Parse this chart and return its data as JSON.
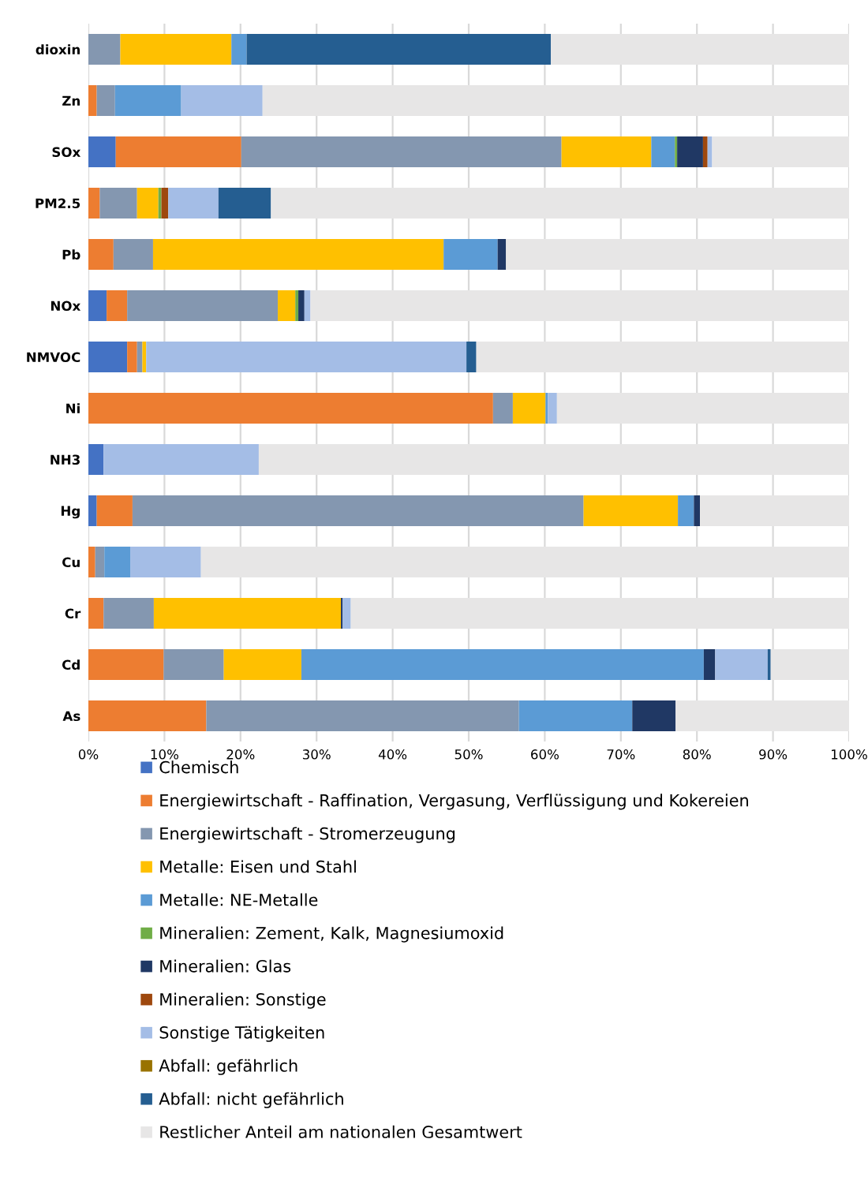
{
  "chart_data": {
    "type": "bar",
    "orientation": "horizontal",
    "stacked": true,
    "legend": "bottom",
    "grid": "x",
    "categories": [
      "dioxin",
      "Zn",
      "SOx",
      "PM2.5",
      "Pb",
      "NOx",
      "NMVOC",
      "Ni",
      "NH3",
      "Hg",
      "Cu",
      "Cr",
      "Cd",
      "As"
    ],
    "xlim": [
      0,
      100
    ],
    "xticks": [
      {
        "value": 0,
        "label": "0%"
      },
      {
        "value": 10,
        "label": "10%"
      },
      {
        "value": 20,
        "label": "20%"
      },
      {
        "value": 30,
        "label": "30%"
      },
      {
        "value": 40,
        "label": "40%"
      },
      {
        "value": 50,
        "label": "50%"
      },
      {
        "value": 60,
        "label": "60%"
      },
      {
        "value": 70,
        "label": "70%"
      },
      {
        "value": 80,
        "label": "80%"
      },
      {
        "value": 90,
        "label": "90%"
      },
      {
        "value": 100,
        "label": "100%"
      }
    ],
    "series": [
      {
        "name": "Chemisch",
        "color": "#4472c4",
        "values": [
          0,
          0,
          3.6,
          0,
          0,
          2.4,
          5.1,
          0,
          2.0,
          1.1,
          0,
          0,
          0,
          0
        ]
      },
      {
        "name": "Energiewirtschaft - Raffination, Vergasung, Verflüssigung und Kokereien",
        "color": "#ed7d31",
        "values": [
          0,
          1.1,
          16.5,
          1.5,
          3.3,
          2.7,
          1.3,
          53.2,
          0,
          4.7,
          0.9,
          2.0,
          9.9,
          15.5
        ]
      },
      {
        "name": "Energiewirtschaft - Stromerzeugung",
        "color": "#8497b0",
        "values": [
          4.2,
          2.4,
          42.1,
          4.9,
          5.2,
          19.8,
          0.7,
          2.6,
          0,
          59.3,
          1.2,
          6.6,
          7.9,
          41.1
        ]
      },
      {
        "name": "Metalle: Eisen und Stahl",
        "color": "#ffc000",
        "values": [
          14.6,
          0,
          11.8,
          2.8,
          38.2,
          2.3,
          0.5,
          4.3,
          0,
          12.4,
          0,
          24.6,
          10.2,
          0
        ]
      },
      {
        "name": "Metalle: NE-Metalle",
        "color": "#5b9bd5",
        "values": [
          2.0,
          8.7,
          3.1,
          0,
          7.1,
          0,
          0,
          0.3,
          0,
          2.1,
          3.4,
          0,
          52.9,
          14.9
        ]
      },
      {
        "name": "Mineralien: Zement, Kalk, Magnesiumoxid",
        "color": "#70ad47",
        "values": [
          0,
          0,
          0.3,
          0.4,
          0,
          0.4,
          0,
          0,
          0,
          0,
          0,
          0,
          0,
          0
        ]
      },
      {
        "name": "Mineralien: Glas",
        "color": "#203864",
        "values": [
          0,
          0,
          3.4,
          0,
          1.1,
          0.8,
          0,
          0,
          0,
          0.8,
          0,
          0.2,
          1.5,
          5.7
        ]
      },
      {
        "name": "Mineralien: Sonstige",
        "color": "#9e480e",
        "values": [
          0,
          0,
          0.6,
          0.9,
          0,
          0,
          0,
          0,
          0,
          0,
          0,
          0,
          0,
          0
        ]
      },
      {
        "name": "Sonstige Tätigkeiten",
        "color": "#a4bde6",
        "values": [
          0,
          10.7,
          0.6,
          6.6,
          0,
          0.8,
          42.1,
          1.2,
          20.4,
          0,
          9.3,
          1.1,
          6.9,
          0
        ]
      },
      {
        "name": "Abfall: gefährlich",
        "color": "#997300",
        "values": [
          0,
          0,
          0,
          0,
          0,
          0,
          0,
          0,
          0,
          0,
          0,
          0,
          0,
          0
        ]
      },
      {
        "name": "Abfall: nicht gefährlich",
        "color": "#255e91",
        "values": [
          40.0,
          0,
          0,
          6.9,
          0,
          0,
          1.3,
          0,
          0,
          0,
          0,
          0,
          0.4,
          0
        ]
      },
      {
        "name": "Restlicher Anteil am nationalen Gesamtwert",
        "color": "#e7e6e6",
        "values": [
          39.2,
          77.1,
          18.0,
          76.0,
          45.1,
          70.8,
          49.0,
          38.4,
          77.6,
          19.6,
          85.2,
          65.5,
          10.3,
          22.8
        ]
      }
    ]
  }
}
